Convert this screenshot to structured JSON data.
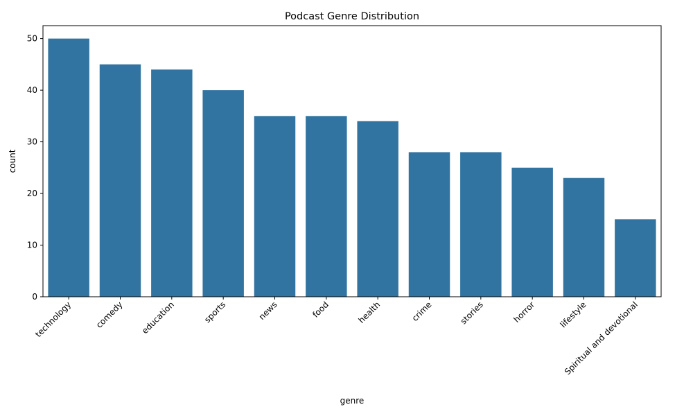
{
  "chart_data": {
    "type": "bar",
    "title": "Podcast Genre Distribution",
    "xlabel": "genre",
    "ylabel": "count",
    "categories": [
      "technology",
      "comedy",
      "education",
      "sports",
      "news",
      "food",
      "health",
      "crime",
      "stories",
      "horror",
      "lifestyle",
      "Spiritual and devotional"
    ],
    "values": [
      50,
      45,
      44,
      40,
      35,
      35,
      34,
      28,
      28,
      25,
      23,
      15
    ],
    "ylim": [
      0,
      52.5
    ],
    "yticks": [
      0,
      10,
      20,
      30,
      40,
      50
    ],
    "bar_color": "#3274a1",
    "grid": false,
    "x_tick_rotation_deg": 45
  }
}
